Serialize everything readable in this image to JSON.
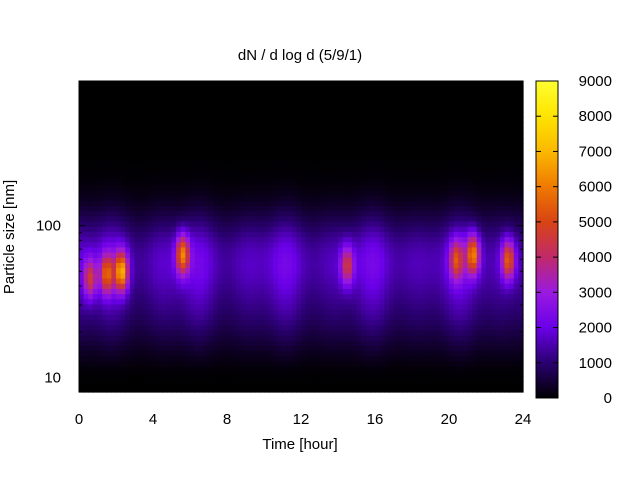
{
  "chart_data": {
    "type": "heatmap",
    "title": "dN / d log d (5/9/1)",
    "xlabel": "Time [hour]",
    "ylabel": "Particle size [nm]",
    "xlim": [
      0,
      24
    ],
    "x_ticks": [
      0,
      4,
      8,
      12,
      16,
      20,
      24
    ],
    "y_scale": "log",
    "ylim": [
      8,
      900
    ],
    "y_tick_labels": [
      {
        "value": 10,
        "label": "10"
      },
      {
        "value": 100,
        "label": "100"
      }
    ],
    "colorbar": {
      "colormap": "black-purple-red-orange-yellow",
      "range": [
        0,
        9000
      ],
      "ticks": [
        0,
        1000,
        2000,
        3000,
        4000,
        5000,
        6000,
        7000,
        8000,
        9000
      ]
    },
    "grid": false,
    "colors": {
      "c0": "#000000",
      "c1": "#2a0070",
      "c2": "#6a00e8",
      "c3": "#9a1ae0",
      "c4": "#c02a6a",
      "c5": "#d84414",
      "c6": "#ef7a00",
      "c7": "#fbb800",
      "c8": "#ffe400",
      "c9": "#ffff30"
    },
    "events": [
      {
        "t": 0.6,
        "d": 45,
        "peak": 5000
      },
      {
        "t": 1.5,
        "d": 48,
        "peak": 5800
      },
      {
        "t": 2.3,
        "d": 50,
        "peak": 7200
      },
      {
        "t": 5.6,
        "d": 65,
        "peak": 6500
      },
      {
        "t": 14.5,
        "d": 55,
        "peak": 5000
      },
      {
        "t": 20.4,
        "d": 60,
        "peak": 5200
      },
      {
        "t": 21.3,
        "d": 65,
        "peak": 6500
      },
      {
        "t": 23.2,
        "d": 60,
        "peak": 6000
      }
    ]
  }
}
